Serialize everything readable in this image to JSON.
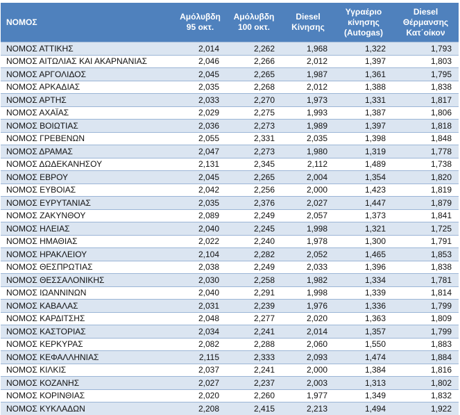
{
  "headers": [
    "ΝΟΜΟΣ",
    "Αμόλυβδη 95 οκτ.",
    "Αμόλυβδη 100 οκτ.",
    "Diesel Κίνησης",
    "Υγραέριο κίνησης (Autogas)",
    "Diesel Θέρμανσης Κατ΄οίκον"
  ],
  "header_lines": [
    [
      "ΝΟΜΟΣ"
    ],
    [
      "Αμόλυβδη",
      "95 οκτ."
    ],
    [
      "Αμόλυβδη",
      "100 οκτ."
    ],
    [
      "Diesel",
      "Κίνησης"
    ],
    [
      "Υγραέριο",
      "κίνησης",
      "(Autogas)"
    ],
    [
      "Diesel",
      "Θέρμανσης",
      "Κατ΄οίκον"
    ]
  ],
  "colors": {
    "header_bg": "#4f81bd",
    "row_alt": "#dbe5f1"
  },
  "rows": [
    [
      "ΝΟΜΟΣ ΑΤΤΙΚΗΣ",
      "2,014",
      "2,262",
      "1,968",
      "1,322",
      "1,793"
    ],
    [
      "ΝΟΜΟΣ ΑΙΤΩΛΙΑΣ ΚΑΙ ΑΚΑΡΝΑΝΙΑΣ",
      "2,046",
      "2,266",
      "2,012",
      "1,397",
      "1,803"
    ],
    [
      "ΝΟΜΟΣ ΑΡΓΟΛΙΔΟΣ",
      "2,045",
      "2,265",
      "1,987",
      "1,361",
      "1,795"
    ],
    [
      "ΝΟΜΟΣ ΑΡΚΑΔΙΑΣ",
      "2,035",
      "2,268",
      "2,012",
      "1,388",
      "1,838"
    ],
    [
      "ΝΟΜΟΣ ΑΡΤΗΣ",
      "2,033",
      "2,270",
      "1,973",
      "1,331",
      "1,817"
    ],
    [
      "ΝΟΜΟΣ ΑΧΑΪΑΣ",
      "2,029",
      "2,275",
      "1,993",
      "1,387",
      "1,806"
    ],
    [
      "ΝΟΜΟΣ ΒΟΙΩΤΙΑΣ",
      "2,036",
      "2,273",
      "1,989",
      "1,397",
      "1,818"
    ],
    [
      "ΝΟΜΟΣ ΓΡΕΒΕΝΩΝ",
      "2,055",
      "2,331",
      "2,035",
      "1,398",
      "1,848"
    ],
    [
      "ΝΟΜΟΣ ΔΡΑΜΑΣ",
      "2,047",
      "2,273",
      "1,980",
      "1,319",
      "1,778"
    ],
    [
      "ΝΟΜΟΣ ΔΩΔΕΚΑΝΗΣΟΥ",
      "2,131",
      "2,345",
      "2,112",
      "1,489",
      "1,738"
    ],
    [
      "ΝΟΜΟΣ ΕΒΡΟΥ",
      "2,045",
      "2,265",
      "2,004",
      "1,354",
      "1,820"
    ],
    [
      "ΝΟΜΟΣ ΕΥΒΟΙΑΣ",
      "2,042",
      "2,256",
      "2,000",
      "1,423",
      "1,819"
    ],
    [
      "ΝΟΜΟΣ ΕΥΡΥΤΑΝΙΑΣ",
      "2,035",
      "2,376",
      "2,027",
      "1,447",
      "1,879"
    ],
    [
      "ΝΟΜΟΣ ΖΑΚΥΝΘΟΥ",
      "2,089",
      "2,249",
      "2,057",
      "1,373",
      "1,841"
    ],
    [
      "ΝΟΜΟΣ ΗΛΕΙΑΣ",
      "2,040",
      "2,245",
      "1,998",
      "1,321",
      "1,725"
    ],
    [
      "ΝΟΜΟΣ ΗΜΑΘΙΑΣ",
      "2,022",
      "2,240",
      "1,978",
      "1,300",
      "1,791"
    ],
    [
      "ΝΟΜΟΣ ΗΡΑΚΛΕΙΟΥ",
      "2,104",
      "2,282",
      "2,052",
      "1,465",
      "1,853"
    ],
    [
      "ΝΟΜΟΣ ΘΕΣΠΡΩΤΙΑΣ",
      "2,038",
      "2,249",
      "2,033",
      "1,396",
      "1,838"
    ],
    [
      "ΝΟΜΟΣ ΘΕΣΣΑΛΟΝΙΚΗΣ",
      "2,030",
      "2,258",
      "1,982",
      "1,334",
      "1,781"
    ],
    [
      "ΝΟΜΟΣ ΙΩΑΝΝΙΝΩΝ",
      "2,040",
      "2,291",
      "1,998",
      "1,339",
      "1,814"
    ],
    [
      "ΝΟΜΟΣ ΚΑΒΑΛΑΣ",
      "2,031",
      "2,239",
      "1,976",
      "1,336",
      "1,799"
    ],
    [
      "ΝΟΜΟΣ ΚΑΡΔΙΤΣΗΣ",
      "2,048",
      "2,277",
      "2,020",
      "1,363",
      "1,809"
    ],
    [
      "ΝΟΜΟΣ ΚΑΣΤΟΡΙΑΣ",
      "2,034",
      "2,241",
      "2,014",
      "1,357",
      "1,799"
    ],
    [
      "ΝΟΜΟΣ ΚΕΡΚΥΡΑΣ",
      "2,082",
      "2,288",
      "2,060",
      "1,550",
      "1,883"
    ],
    [
      "ΝΟΜΟΣ ΚΕΦΑΛΛΗΝΙΑΣ",
      "2,115",
      "2,333",
      "2,093",
      "1,474",
      "1,884"
    ],
    [
      "ΝΟΜΟΣ ΚΙΛΚΙΣ",
      "2,037",
      "2,241",
      "2,000",
      "1,384",
      "1,816"
    ],
    [
      "ΝΟΜΟΣ ΚΟΖΑΝΗΣ",
      "2,027",
      "2,237",
      "2,003",
      "1,313",
      "1,802"
    ],
    [
      "ΝΟΜΟΣ ΚΟΡΙΝΘΙΑΣ",
      "2,020",
      "2,260",
      "1,977",
      "1,349",
      "1,832"
    ],
    [
      "ΝΟΜΟΣ ΚΥΚΛΑΔΩΝ",
      "2,208",
      "2,415",
      "2,213",
      "1,494",
      "1,922"
    ]
  ]
}
